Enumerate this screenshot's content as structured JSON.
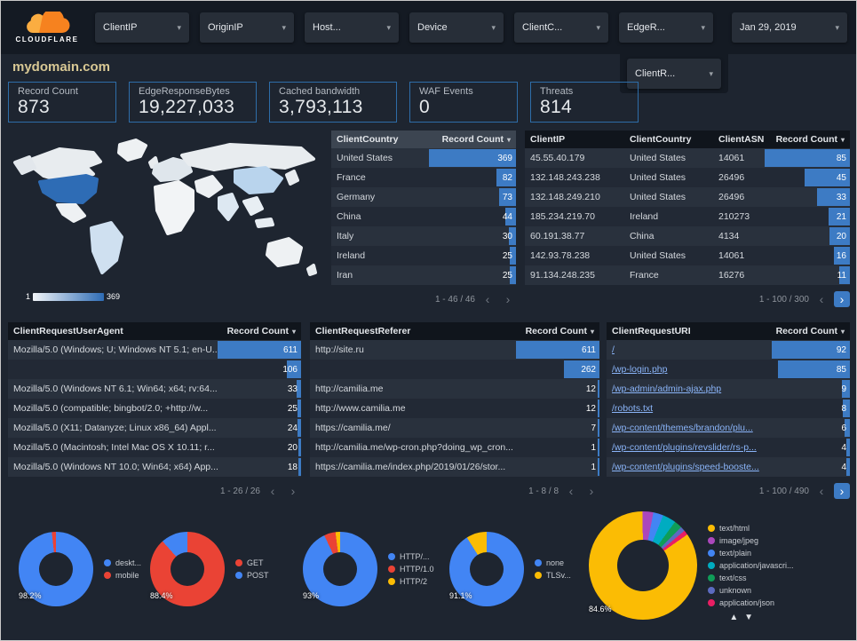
{
  "icons": {
    "caret_down": "▾",
    "chev_left": "‹",
    "chev_right": "›",
    "sort_up": "▲",
    "sort_down": "▼"
  },
  "topbar": {
    "logo_text": "CLOUDFLARE",
    "filters": [
      "ClientIP",
      "OriginIP",
      "Host...",
      "Device",
      "ClientC...",
      "EdgeR..."
    ],
    "extra_filter": "ClientR...",
    "date_label": "Jan 29, 2019"
  },
  "page_title": "mydomain.com",
  "kpis": [
    {
      "label": "Record Count",
      "value": "873"
    },
    {
      "label": "EdgeResponseBytes",
      "value": "19,227,033"
    },
    {
      "label": "Cached bandwidth",
      "value": "3,793,113"
    },
    {
      "label": "WAF Events",
      "value": "0"
    },
    {
      "label": "Threats",
      "value": "814"
    }
  ],
  "map": {
    "legend_min": "1",
    "legend_max": "369"
  },
  "tables": {
    "country": {
      "columns": [
        {
          "label": "ClientCountry"
        },
        {
          "label": "Record Count",
          "metric": true,
          "sortable": true
        }
      ],
      "rows": [
        [
          "United States",
          369
        ],
        [
          "France",
          82
        ],
        [
          "Germany",
          73
        ],
        [
          "China",
          44
        ],
        [
          "Italy",
          30
        ],
        [
          "Ireland",
          25
        ],
        [
          "Iran",
          25
        ]
      ],
      "pagination": "1 - 46 / 46"
    },
    "ip": {
      "columns": [
        {
          "label": "ClientIP"
        },
        {
          "label": "ClientCountry"
        },
        {
          "label": "ClientASN"
        },
        {
          "label": "Record Count",
          "metric": true,
          "sortable": true
        }
      ],
      "rows": [
        [
          "45.55.40.179",
          "United States",
          "14061",
          85
        ],
        [
          "132.148.243.238",
          "United States",
          "26496",
          45
        ],
        [
          "132.148.249.210",
          "United States",
          "26496",
          33
        ],
        [
          "185.234.219.70",
          "Ireland",
          "210273",
          21
        ],
        [
          "60.191.38.77",
          "China",
          "4134",
          20
        ],
        [
          "142.93.78.238",
          "United States",
          "14061",
          16
        ],
        [
          "91.134.248.235",
          "France",
          "16276",
          11
        ]
      ],
      "pagination": "1 - 100 / 300"
    },
    "ua": {
      "columns": [
        {
          "label": "ClientRequestUserAgent"
        },
        {
          "label": "Record Count",
          "metric": true,
          "sortable": true
        }
      ],
      "rows": [
        [
          "Mozilla/5.0 (Windows; U; Windows NT 5.1; en-U...",
          611
        ],
        [
          "",
          106
        ],
        [
          "Mozilla/5.0 (Windows NT 6.1; Win64; x64; rv:64...",
          33
        ],
        [
          "Mozilla/5.0 (compatible; bingbot/2.0; +http://w...",
          25
        ],
        [
          "Mozilla/5.0 (X11; Datanyze; Linux x86_64) Appl...",
          24
        ],
        [
          "Mozilla/5.0 (Macintosh; Intel Mac OS X 10.11; r...",
          20
        ],
        [
          "Mozilla/5.0 (Windows NT 10.0; Win64; x64) App...",
          18
        ]
      ],
      "pagination": "1 - 26 / 26"
    },
    "referer": {
      "columns": [
        {
          "label": "ClientRequestReferer"
        },
        {
          "label": "Record Count",
          "metric": true,
          "sortable": true
        }
      ],
      "rows": [
        [
          "http://site.ru",
          611
        ],
        [
          "",
          262
        ],
        [
          "http://camilia.me",
          12
        ],
        [
          "http://www.camilia.me",
          12
        ],
        [
          "https://camilia.me/",
          7
        ],
        [
          "http://camilia.me/wp-cron.php?doing_wp_cron...",
          1
        ],
        [
          "https://camilia.me/index.php/2019/01/26/stor...",
          1
        ]
      ],
      "pagination": "1 - 8 / 8"
    },
    "uri": {
      "columns": [
        {
          "label": "ClientRequestURI",
          "link": true
        },
        {
          "label": "Record Count",
          "metric": true,
          "sortable": true
        }
      ],
      "rows": [
        [
          "/",
          92
        ],
        [
          "/wp-login.php",
          85
        ],
        [
          "/wp-admin/admin-ajax.php",
          9
        ],
        [
          "/robots.txt",
          8
        ],
        [
          "/wp-content/themes/brandon/plu...",
          6
        ],
        [
          "/wp-content/plugins/revslider/rs-p...",
          4
        ],
        [
          "/wp-content/plugins/speed-booste...",
          4
        ]
      ],
      "pagination": "1 - 100 / 490"
    }
  },
  "donuts": [
    {
      "percent_label": "98.2%",
      "start_angle": 0,
      "items": [
        {
          "label": "deskt...",
          "value": 98.2,
          "color": "#4285f4"
        },
        {
          "label": "mobile",
          "value": 1.8,
          "color": "#ea4335"
        }
      ]
    },
    {
      "percent_label": "88.4%",
      "start_angle": 0,
      "items": [
        {
          "label": "GET",
          "value": 88.4,
          "color": "#ea4335"
        },
        {
          "label": "POST",
          "value": 11.6,
          "color": "#4285f4"
        }
      ]
    },
    {
      "percent_label": "93%",
      "start_angle": 0,
      "items": [
        {
          "label": "HTTP/...",
          "value": 93,
          "color": "#4285f4"
        },
        {
          "label": "HTTP/1.0",
          "value": 5,
          "color": "#ea4335"
        },
        {
          "label": "HTTP/2",
          "value": 2,
          "color": "#fbbc04"
        }
      ]
    },
    {
      "percent_label": "91.1%",
      "start_angle": 0,
      "items": [
        {
          "label": "none",
          "value": 91.1,
          "color": "#4285f4"
        },
        {
          "label": "TLSv...",
          "value": 8.9,
          "color": "#fbbc04"
        }
      ]
    },
    {
      "percent_label": "84.6%",
      "start_angle": 55,
      "items": [
        {
          "label": "text/html",
          "value": 84.6,
          "color": "#fbbc04"
        },
        {
          "label": "image/jpeg",
          "value": 3.2,
          "color": "#ab47bc"
        },
        {
          "label": "text/plain",
          "value": 3.0,
          "color": "#4285f4"
        },
        {
          "label": "application/javascri...",
          "value": 4.0,
          "color": "#00acc1"
        },
        {
          "label": "text/css",
          "value": 2.4,
          "color": "#0f9d58"
        },
        {
          "label": "unknown",
          "value": 1.4,
          "color": "#5c6bc0"
        },
        {
          "label": "application/json",
          "value": 1.4,
          "color": "#e91e63"
        }
      ]
    }
  ]
}
